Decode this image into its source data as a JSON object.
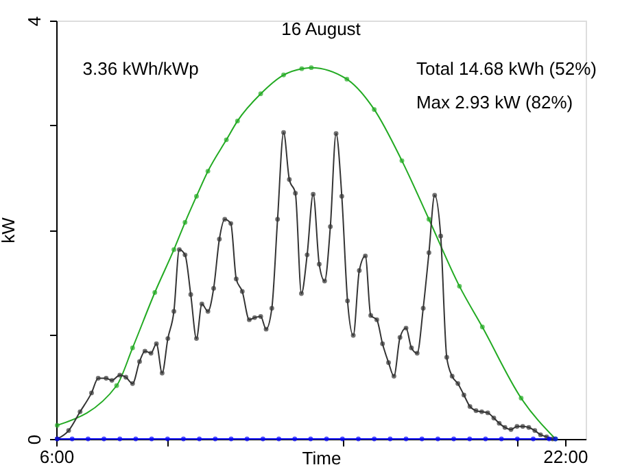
{
  "chart_data": {
    "type": "line",
    "title": "16 August",
    "xlabel": "Time",
    "ylabel": "kW",
    "annotations": [
      "3.36 kWh/kWp",
      "Total 14.68 kWh (52%)",
      "Max 2.93 kW (82%)"
    ],
    "xlim": [
      6,
      22.65
    ],
    "xticks": [
      {
        "value": 6,
        "label": "6:00"
      },
      {
        "value": 9.5,
        "label": null
      },
      {
        "value": 15,
        "label": null
      },
      {
        "value": 20.5,
        "label": null
      },
      {
        "value": 22,
        "label": "22:00"
      }
    ],
    "ylim": [
      0,
      4
    ],
    "yticks": [
      0,
      {
        "value": 1,
        "label": null
      },
      {
        "value": 2,
        "label": null
      },
      {
        "value": 3,
        "label": null
      },
      4
    ],
    "marker": "circle",
    "grid": false,
    "series": [
      {
        "color": "#22aa22",
        "x": [
          6.03,
          7.9,
          8.4,
          9.1,
          9.7,
          10.05,
          10.41,
          10.77,
          11.35,
          11.7,
          12.43,
          13.15,
          13.72,
          14.02,
          15.14,
          16.0,
          16.87,
          17.72,
          18.68,
          19.4,
          20.62,
          21.7
        ],
        "values": [
          0.13,
          0.51,
          0.87,
          1.4,
          1.81,
          2.07,
          2.32,
          2.56,
          2.86,
          3.04,
          3.3,
          3.48,
          3.54,
          3.55,
          3.44,
          3.15,
          2.66,
          2.1,
          1.46,
          1.07,
          0.39,
          0.0
        ]
      },
      {
        "color": "#333333",
        "x": [
          6.03,
          6.39,
          6.75,
          7.11,
          7.32,
          7.57,
          7.75,
          8.0,
          8.19,
          8.4,
          8.62,
          8.79,
          8.98,
          9.15,
          9.33,
          9.51,
          9.7,
          9.87,
          10.05,
          10.23,
          10.41,
          10.58,
          10.77,
          10.95,
          11.13,
          11.3,
          11.49,
          11.66,
          11.85,
          12.07,
          12.24,
          12.43,
          12.6,
          12.78,
          12.96,
          13.15,
          13.33,
          13.52,
          13.71,
          13.89,
          14.08,
          14.27,
          14.44,
          14.62,
          14.8,
          14.98,
          15.16,
          15.34,
          15.53,
          15.72,
          15.89,
          16.08,
          16.26,
          16.45,
          16.62,
          16.81,
          17.0,
          17.17,
          17.35,
          17.54,
          17.72,
          17.9,
          18.09,
          18.28,
          18.45,
          18.63,
          18.82,
          19.01,
          19.2,
          19.38,
          19.57,
          19.76,
          19.93,
          20.11,
          20.3,
          20.49,
          20.67,
          20.86,
          21.05,
          21.23,
          21.42,
          21.61
        ],
        "values": [
          0,
          0.08,
          0.26,
          0.44,
          0.58,
          0.58,
          0.56,
          0.61,
          0.59,
          0.53,
          0.74,
          0.84,
          0.82,
          0.91,
          0.63,
          0.96,
          1.22,
          1.81,
          1.76,
          1.38,
          0.96,
          1.29,
          1.22,
          1.44,
          1.91,
          2.1,
          2.06,
          1.53,
          1.41,
          1.14,
          1.16,
          1.17,
          1.05,
          1.25,
          2.1,
          2.93,
          2.48,
          2.35,
          1.39,
          1.76,
          2.34,
          1.67,
          1.51,
          2.03,
          2.92,
          2.32,
          1.32,
          0.99,
          1.61,
          1.75,
          1.18,
          1.14,
          0.91,
          0.73,
          0.6,
          0.97,
          1.06,
          0.87,
          0.82,
          1.25,
          1.78,
          2.33,
          1.94,
          0.78,
          0.6,
          0.53,
          0.42,
          0.31,
          0.27,
          0.26,
          0.25,
          0.2,
          0.15,
          0.11,
          0.09,
          0.12,
          0.12,
          0.11,
          0.08,
          0.04,
          0.02,
          0
        ]
      },
      {
        "color": "#0000ff",
        "x": [
          6.03,
          6.5,
          7.0,
          7.5,
          8.0,
          8.5,
          9.0,
          9.5,
          10.0,
          10.5,
          11.0,
          11.5,
          12.0,
          12.5,
          13.0,
          13.5,
          14.0,
          14.5,
          15.0,
          15.5,
          16.0,
          16.5,
          17.0,
          17.5,
          18.0,
          18.5,
          19.0,
          19.5,
          20.0,
          20.5,
          21.0,
          21.5,
          21.7
        ],
        "values": [
          0,
          0,
          0,
          0,
          0,
          0,
          0,
          0,
          0,
          0,
          0,
          0,
          0,
          0,
          0,
          0,
          0,
          0,
          0,
          0,
          0,
          0,
          0,
          0,
          0,
          0,
          0,
          0,
          0,
          0,
          0,
          0,
          0
        ]
      }
    ]
  }
}
